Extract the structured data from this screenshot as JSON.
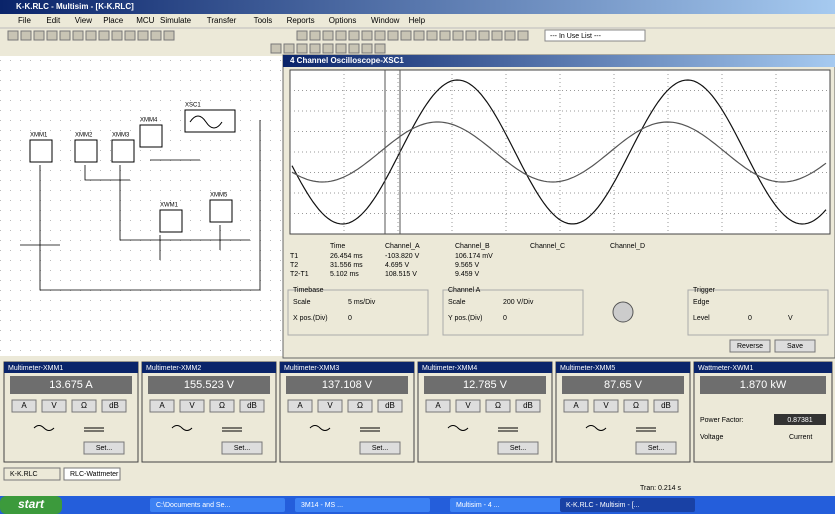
{
  "window": {
    "title": "K-K.RLC - Multisim - [K-K.RLC]",
    "menu": [
      "File",
      "Edit",
      "View",
      "Place",
      "MCU",
      "Simulate",
      "Transfer",
      "Tools",
      "Reports",
      "Options",
      "Window",
      "Help"
    ],
    "in_use_list": "--- In Use List ---"
  },
  "schematic": {
    "labels": [
      "XMM1",
      "XMM2",
      "XMM3",
      "XSC1",
      "XMM4",
      "XMM5",
      "XWM1"
    ]
  },
  "oscilloscope": {
    "title": "4 Channel Oscilloscope-XSC1",
    "headers": [
      "Time",
      "Channel_A",
      "Channel_B",
      "Channel_C",
      "Channel_D"
    ],
    "rows": [
      {
        "label": "T1",
        "values": [
          "26.454 ms",
          "-103.820 V",
          "106.174 mV"
        ]
      },
      {
        "label": "T2",
        "values": [
          "31.556 ms",
          "4.695 V",
          "9.565 V"
        ]
      },
      {
        "label": "T2-T1",
        "values": [
          "5.102 ms",
          "108.515 V",
          "9.459 V"
        ]
      }
    ],
    "timebase": {
      "title": "Timebase",
      "scale_label": "Scale",
      "scale": "5 ms/Div",
      "pos_label": "X pos.(Div)",
      "pos": "0"
    },
    "channel": {
      "title": "Channel A",
      "scale_label": "Scale",
      "scale": "200 V/Div",
      "pos_label": "Y pos.(Div)",
      "pos": "0"
    },
    "trigger": {
      "title": "Trigger",
      "edge_label": "Edge",
      "level_label": "Level",
      "level": "0",
      "unit": "V"
    },
    "buttons": [
      "Reverse",
      "Save"
    ]
  },
  "multimeter_controls": {
    "buttons": [
      "A",
      "V",
      "Ω",
      "dB"
    ],
    "set": "Set..."
  },
  "meters": [
    {
      "title": "Multimeter-XMM1",
      "reading": "13.675 A"
    },
    {
      "title": "Multimeter-XMM2",
      "reading": "155.523 V"
    },
    {
      "title": "Multimeter-XMM3",
      "reading": "137.108 V"
    },
    {
      "title": "Multimeter-XMM4",
      "reading": "12.785 V"
    },
    {
      "title": "Multimeter-XMM5",
      "reading": "87.65 V"
    }
  ],
  "wattmeter": {
    "title": "Wattmeter-XWM1",
    "reading": "1.870 kW",
    "pf_label": "Power Factor:",
    "pf": "0.87381",
    "voltage": "Voltage",
    "current": "Current"
  },
  "tabs": [
    "K-K.RLC",
    "RLC-Wattmeter"
  ],
  "status": "Tran: 0.214 s",
  "taskbar": {
    "start": "start",
    "items": [
      "C:\\Documents and Se...",
      "3M14 - MS ...",
      "Multisim - 4 ...",
      "K-K.RLC - Multisim - [..."
    ]
  }
}
